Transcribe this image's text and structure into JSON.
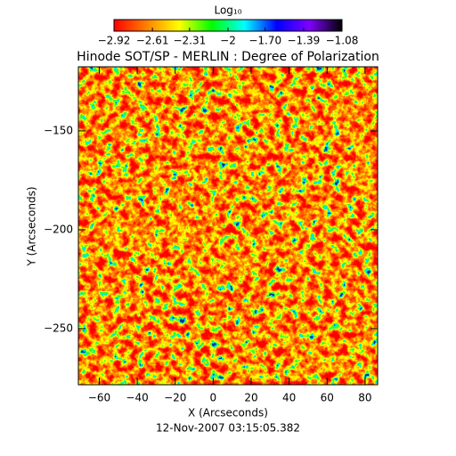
{
  "chart_data": {
    "type": "image",
    "title": "Hinode SOT/SP - MERLIN : Degree of Polarization",
    "x_label": "X (Arcseconds)",
    "y_label": "Y (Arcseconds)",
    "footer": "12-Nov-2007 03:15:05.382",
    "xlim": [
      -71,
      86.6
    ],
    "ylim": [
      -278.4,
      -117.6
    ],
    "xticks": [
      -60,
      -40,
      -20,
      0,
      20,
      40,
      60,
      80
    ],
    "yticks": [
      -250,
      -200,
      -150
    ],
    "colorbar": {
      "label": "Log₁₀",
      "clim": [
        -2.92,
        -1.08
      ],
      "ticks": [
        -2.92,
        -2.61,
        -2.31,
        -2.0,
        {
          "value": -1.7,
          "label": "-1.70"
        },
        -1.39,
        -1.08
      ],
      "colormap": [
        "#ff0000",
        "#ff8000",
        "#ffff00",
        "#00ff00",
        "#00ffff",
        "#0000ff",
        "#8000ff",
        "#000000"
      ]
    }
  }
}
